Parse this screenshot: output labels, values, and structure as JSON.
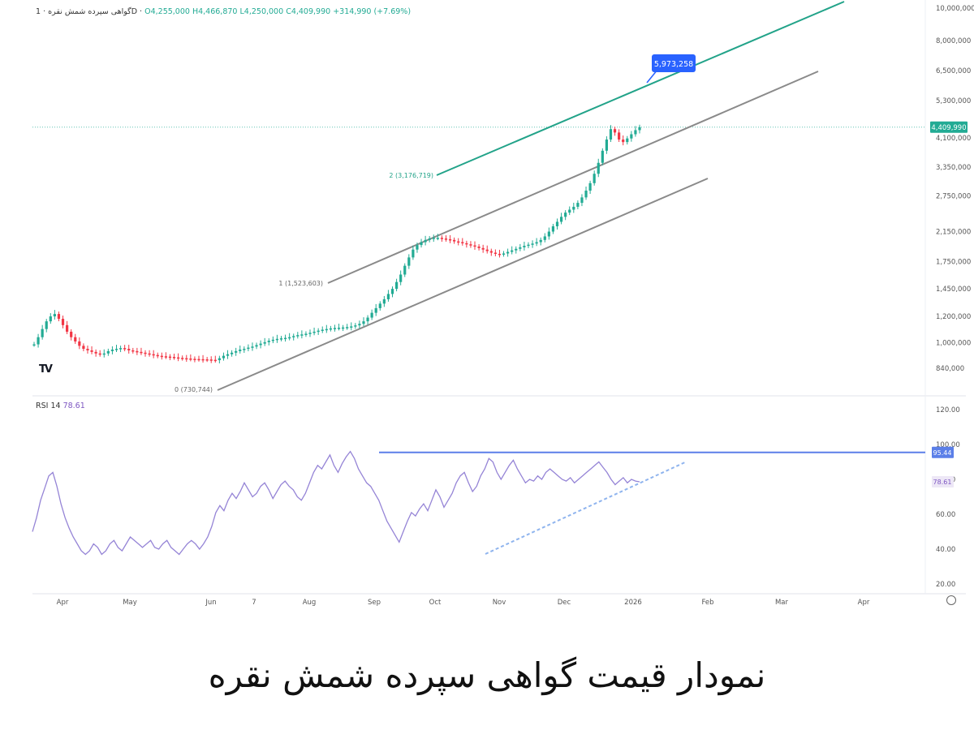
{
  "header": {
    "symbol": "گواهی سپرده شمش نقره",
    "interval": "1D",
    "open": "O4,255,000",
    "high": "H4,466,870",
    "low": "L4,250,000",
    "close": "C4,409,990",
    "change": "+314,990 (+7.69%)"
  },
  "rsi_legend": {
    "label": "RSI 14",
    "value": "78.61"
  },
  "caption": "نمودار قیمت گواهی سپرده شمش نقره",
  "colors": {
    "up": "#22ab94",
    "down": "#f23645",
    "channel": "#8a8a8a",
    "target_line": "#22a389",
    "rsi": "#9584d6",
    "resistance": "#5b7fe8",
    "support_dash": "#8fb4ee",
    "callout": "#2962ff",
    "current_price": "#22ab94",
    "rsi_badge": "#7e57c2"
  },
  "chart_data": [
    {
      "type": "line",
      "name": "price",
      "yscale": "log",
      "yticks": [
        840000,
        1000000,
        1200000,
        1450000,
        1750000,
        2150000,
        2750000,
        3350000,
        4100000,
        5300000,
        6500000,
        8000000,
        10000000
      ],
      "ytick_labels": [
        "840,000",
        "1,000,000",
        "1,200,000",
        "1,450,000",
        "1,750,000",
        "2,150,000",
        "2,750,000",
        "3,350,000",
        "4,100,000",
        "5,300,000",
        "6,500,000",
        "8,000,000",
        "10,000,000"
      ],
      "xticks": [
        "Apr",
        "May",
        "Jun",
        "7",
        "Aug",
        "Sep",
        "Oct",
        "Nov",
        "Dec",
        "2026",
        "Feb",
        "Mar",
        "Apr"
      ],
      "series": [
        {
          "values": [
            990000,
            1040000,
            1100000,
            1160000,
            1200000,
            1220000,
            1180000,
            1130000,
            1080000,
            1040000,
            1010000,
            980000,
            960000,
            950000,
            940000,
            930000,
            925000,
            930000,
            945000,
            955000,
            960000,
            965000,
            960000,
            950000,
            945000,
            940000,
            935000,
            930000,
            925000,
            920000,
            915000,
            912000,
            910000,
            908000,
            905000,
            902000,
            900000,
            898000,
            896000,
            895000,
            894000,
            893000,
            892000,
            890000,
            888000,
            900000,
            915000,
            925000,
            935000,
            945000,
            955000,
            960000,
            968000,
            975000,
            985000,
            995000,
            1005000,
            1015000,
            1022000,
            1028000,
            1032000,
            1035000,
            1040000,
            1048000,
            1055000,
            1060000,
            1065000,
            1072000,
            1080000,
            1088000,
            1095000,
            1100000,
            1105000,
            1108000,
            1110000,
            1112000,
            1115000,
            1120000,
            1128000,
            1140000,
            1160000,
            1190000,
            1230000,
            1270000,
            1310000,
            1350000,
            1400000,
            1450000,
            1520000,
            1600000,
            1700000,
            1800000,
            1900000,
            1960000,
            2000000,
            2030000,
            2050000,
            2060000,
            2060000,
            2050000,
            2040000,
            2030000,
            2010000,
            2000000,
            1985000,
            1970000,
            1955000,
            1940000,
            1920000,
            1900000,
            1880000,
            1860000,
            1845000,
            1840000,
            1850000,
            1870000,
            1890000,
            1910000,
            1930000,
            1950000,
            1965000,
            1980000,
            2000000,
            2030000,
            2080000,
            2150000,
            2230000,
            2300000,
            2380000,
            2450000,
            2500000,
            2550000,
            2620000,
            2720000,
            2850000,
            3000000,
            3200000,
            3450000,
            3750000,
            4050000,
            4350000,
            4250000,
            4050000,
            3980000,
            4080000,
            4200000,
            4320000,
            4409990
          ]
        }
      ],
      "annotations": [
        {
          "label": "0 (730,744)"
        },
        {
          "label": "1 (1,523,603)"
        },
        {
          "label": "2 (3,176,719)"
        },
        {
          "label": "5,973,258",
          "type": "callout"
        },
        {
          "label": "4,409,990",
          "type": "current_price"
        }
      ]
    },
    {
      "type": "line",
      "name": "RSI 14",
      "ylim": [
        20,
        120
      ],
      "yticks": [
        20,
        40,
        60,
        80,
        100,
        120
      ],
      "ytick_labels": [
        "20.00",
        "40.00",
        "60.00",
        "80.00",
        "100.00",
        "120.00"
      ],
      "resistance_level": 95.44,
      "resistance_label": "95.44",
      "current_label": "78.61",
      "series": [
        {
          "name": "RSI 14",
          "values": [
            50,
            58,
            68,
            75,
            82,
            84,
            76,
            66,
            58,
            52,
            47,
            43,
            39,
            37,
            39,
            43,
            41,
            37,
            39,
            43,
            45,
            41,
            39,
            43,
            47,
            45,
            43,
            41,
            43,
            45,
            41,
            40,
            43,
            45,
            41,
            39,
            37,
            40,
            43,
            45,
            43,
            40,
            43,
            47,
            53,
            61,
            65,
            62,
            68,
            72,
            69,
            73,
            78,
            74,
            70,
            72,
            76,
            78,
            74,
            69,
            73,
            77,
            79,
            76,
            74,
            70,
            68,
            72,
            78,
            84,
            88,
            86,
            90,
            94,
            88,
            84,
            89,
            93,
            96,
            92,
            86,
            82,
            78,
            76,
            72,
            68,
            62,
            56,
            52,
            48,
            44,
            50,
            56,
            61,
            59,
            63,
            66,
            62,
            68,
            74,
            70,
            64,
            68,
            72,
            78,
            82,
            84,
            78,
            73,
            76,
            82,
            86,
            92,
            90,
            84,
            80,
            84,
            88,
            91,
            86,
            82,
            78,
            80,
            79,
            82,
            80,
            84,
            86,
            84,
            82,
            80,
            79,
            81,
            78,
            80,
            82,
            84,
            86,
            88,
            90,
            87,
            84,
            80,
            77,
            79,
            81,
            78,
            80,
            79,
            78.61
          ]
        }
      ]
    }
  ]
}
